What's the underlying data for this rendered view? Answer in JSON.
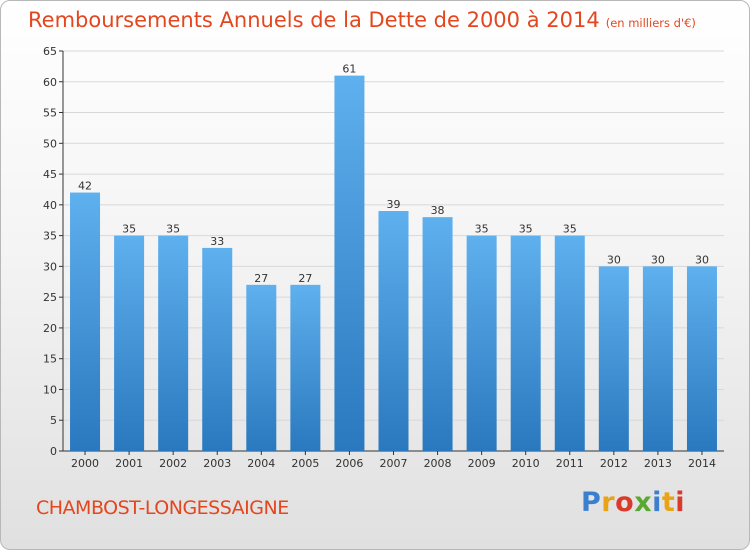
{
  "header": {
    "title": "Remboursements Annuels de la Dette de 2000 à 2014",
    "unit": "(en milliers d'€)"
  },
  "footer": {
    "commune": "CHAMBOST-LONGESSAIGNE",
    "logo_letters": [
      "P",
      "r",
      "o",
      "x",
      "i",
      "t",
      "i"
    ],
    "logo_colors": [
      "#3b7fd0",
      "#e8a317",
      "#d93a2a",
      "#5aa832",
      "#3b7fd0",
      "#e8a317",
      "#d93a2a"
    ]
  },
  "colors": {
    "title": "#e4461e",
    "bar_light": "#5fb0ee",
    "bar_dark": "#2a78be",
    "grid": "#d8d8d8",
    "axis": "#333333"
  },
  "chart_data": {
    "type": "bar",
    "title": "Remboursements Annuels de la Dette de 2000 à 2014",
    "categories": [
      "2000",
      "2001",
      "2002",
      "2003",
      "2004",
      "2005",
      "2006",
      "2007",
      "2008",
      "2009",
      "2010",
      "2011",
      "2012",
      "2013",
      "2014"
    ],
    "values": [
      42,
      35,
      35,
      33,
      27,
      27,
      61,
      39,
      38,
      35,
      35,
      35,
      30,
      30,
      30
    ],
    "ylim": [
      0,
      65
    ],
    "yticks": [
      0,
      5,
      10,
      15,
      20,
      25,
      30,
      35,
      40,
      45,
      50,
      55,
      60,
      65
    ],
    "grid": true,
    "data_labels": true
  }
}
